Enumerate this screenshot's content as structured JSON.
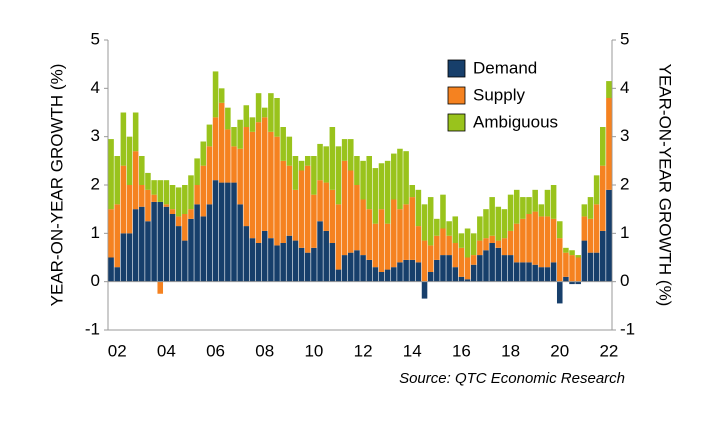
{
  "chart_data": {
    "type": "stacked_bar",
    "y_label": "YEAR-ON-YEAR GROWTH (%)",
    "y2_label": "YEAR-ON-YEAR GROWTH (%)",
    "source": "Source: QTC Economic Research",
    "categories": [
      null,
      "02",
      null,
      null,
      null,
      null,
      null,
      null,
      null,
      "04",
      null,
      null,
      null,
      null,
      null,
      null,
      null,
      "06",
      null,
      null,
      null,
      null,
      null,
      null,
      null,
      "08",
      null,
      null,
      null,
      null,
      null,
      null,
      null,
      "10",
      null,
      null,
      null,
      null,
      null,
      null,
      null,
      "12",
      null,
      null,
      null,
      null,
      null,
      null,
      null,
      "14",
      null,
      null,
      null,
      null,
      null,
      null,
      null,
      "16",
      null,
      null,
      null,
      null,
      null,
      null,
      null,
      "18",
      null,
      null,
      null,
      null,
      null,
      null,
      null,
      "20",
      null,
      null,
      null,
      null,
      null,
      null,
      null,
      "22"
    ],
    "series": [
      {
        "name": "Demand",
        "color": "#173f6b",
        "values": [
          0.5,
          0.3,
          1.0,
          1.0,
          1.5,
          1.55,
          1.25,
          1.65,
          1.65,
          1.55,
          1.4,
          1.15,
          0.85,
          1.3,
          1.6,
          1.35,
          1.6,
          2.1,
          2.05,
          2.05,
          2.05,
          1.6,
          1.15,
          0.9,
          0.8,
          1.05,
          0.9,
          0.75,
          0.8,
          0.95,
          0.85,
          0.7,
          0.6,
          0.7,
          1.25,
          1.05,
          0.8,
          0.25,
          0.55,
          0.6,
          0.65,
          0.55,
          0.45,
          0.3,
          0.2,
          0.25,
          0.3,
          0.4,
          0.45,
          0.45,
          0.4,
          -0.35,
          0.2,
          0.45,
          0.55,
          0.55,
          0.3,
          0.1,
          0.05,
          0.35,
          0.55,
          0.65,
          0.8,
          0.7,
          0.55,
          0.55,
          0.4,
          0.4,
          0.4,
          0.35,
          0.3,
          0.3,
          0.4,
          -0.45,
          0.1,
          -0.05,
          -0.05,
          0.85,
          0.6,
          0.6,
          1.05,
          1.9
        ]
      },
      {
        "name": "Supply",
        "color": "#f58220",
        "values": [
          1.0,
          1.3,
          1.4,
          1.0,
          1.2,
          0.45,
          0.65,
          0.15,
          -0.25,
          0.05,
          0.1,
          0.2,
          0.55,
          0.2,
          0.4,
          1.05,
          1.2,
          1.3,
          1.65,
          1.1,
          0.75,
          1.15,
          2.05,
          2.2,
          2.5,
          2.35,
          2.2,
          2.25,
          1.7,
          1.45,
          1.05,
          1.6,
          1.8,
          1.1,
          0.85,
          1.0,
          1.1,
          1.35,
          1.95,
          1.7,
          1.35,
          1.15,
          1.05,
          0.9,
          1.3,
          0.95,
          1.4,
          1.1,
          1.15,
          1.3,
          0.75,
          0.85,
          0.55,
          0.5,
          0.55,
          0.4,
          0.5,
          0.6,
          0.45,
          0.2,
          0.3,
          0.25,
          0.15,
          0.15,
          0.35,
          0.5,
          0.8,
          0.9,
          1.0,
          1.1,
          1.05,
          1.05,
          0.9,
          0.9,
          0.5,
          0.55,
          0.5,
          0.5,
          0.7,
          1.0,
          1.35,
          1.9
        ]
      },
      {
        "name": "Ambiguous",
        "color": "#99c31c",
        "values": [
          1.45,
          1.0,
          1.1,
          1.0,
          0.8,
          0.6,
          0.35,
          0.3,
          0.45,
          0.5,
          0.5,
          0.6,
          0.6,
          0.7,
          0.55,
          0.5,
          0.45,
          0.95,
          0.3,
          0.45,
          0.4,
          0.6,
          0.45,
          0.3,
          0.6,
          0.2,
          0.8,
          0.8,
          0.7,
          0.6,
          0.7,
          0.2,
          0.2,
          0.8,
          0.75,
          0.75,
          1.3,
          1.2,
          0.45,
          0.65,
          0.6,
          0.8,
          1.1,
          1.15,
          0.95,
          1.3,
          0.95,
          1.25,
          1.1,
          0.25,
          0.75,
          0.75,
          1.0,
          0.35,
          0.7,
          0.3,
          0.55,
          0.3,
          0.6,
          0.45,
          0.5,
          0.6,
          0.8,
          0.7,
          0.6,
          0.75,
          0.7,
          0.45,
          0.35,
          0.45,
          0.25,
          0.55,
          0.7,
          0.35,
          0.1,
          0.1,
          0.05,
          0.25,
          0.45,
          0.6,
          0.8,
          0.35
        ]
      }
    ],
    "ylim": [
      -1,
      5
    ],
    "yticks": [
      -1,
      0,
      1,
      2,
      3,
      4,
      5
    ],
    "y2lim": [
      -1,
      5
    ],
    "y2ticks": [
      -1,
      0,
      1,
      2,
      3,
      4,
      5
    ],
    "grid": false,
    "legend": "upper right"
  }
}
